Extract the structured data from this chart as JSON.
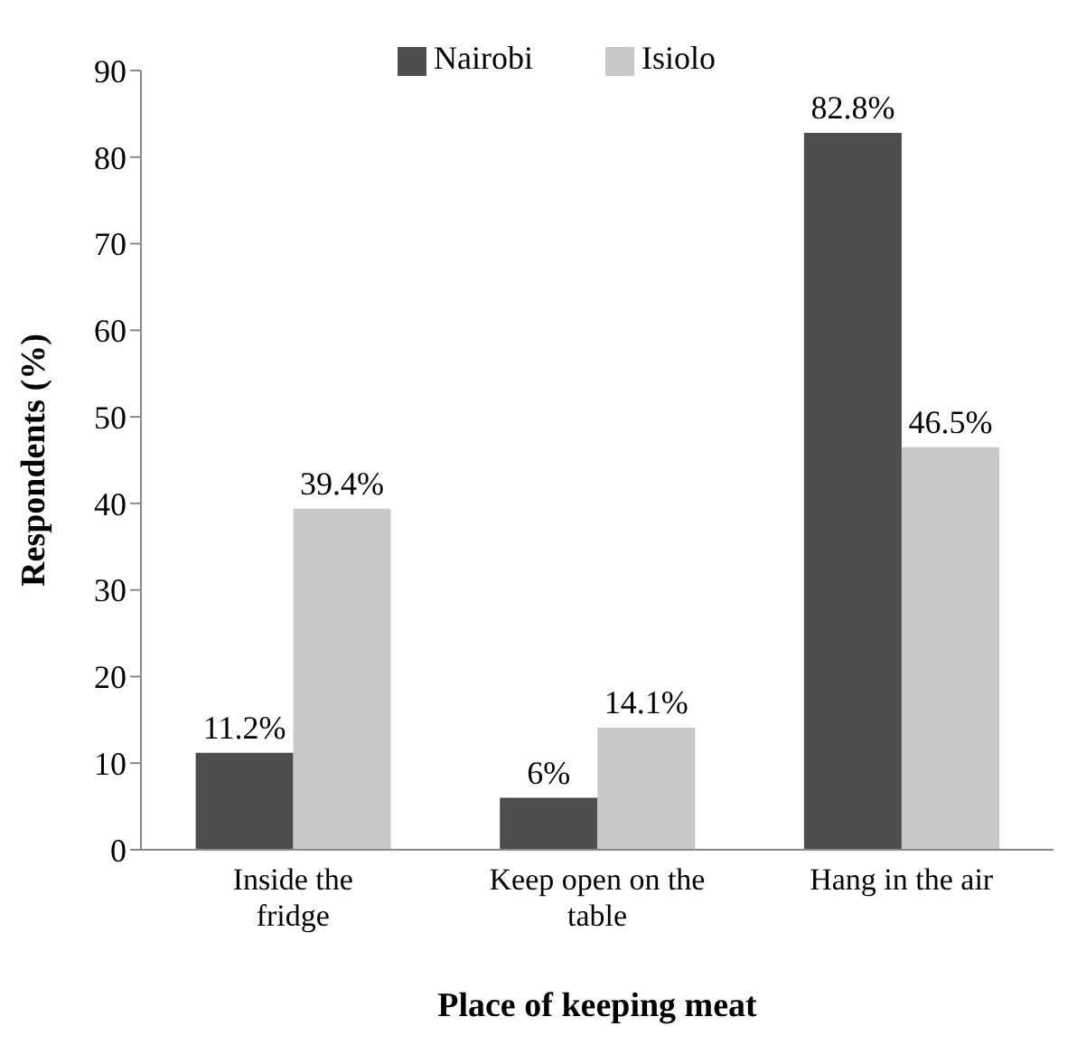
{
  "chart_data": {
    "type": "bar",
    "xlabel": "Place of keeping  meat",
    "ylabel": "Respondents (%)",
    "categories": [
      "Inside   the fridge",
      "Keep open on the table",
      "Hang in the air"
    ],
    "series": [
      {
        "name": "Nairobi",
        "color": "#4d4d4d",
        "values": [
          11.2,
          6,
          82.8
        ],
        "value_labels": [
          "11.2%",
          "6%",
          "82.8%"
        ]
      },
      {
        "name": "Isiolo",
        "color": "#c8c8c8",
        "values": [
          39.4,
          14.1,
          46.5
        ],
        "value_labels": [
          "39.4%",
          "14.1%",
          "46.5%"
        ]
      }
    ],
    "ylim": [
      0,
      90
    ],
    "yticks": [
      0,
      10,
      20,
      30,
      40,
      50,
      60,
      70,
      80,
      90
    ],
    "grid": false,
    "legend": "top"
  }
}
